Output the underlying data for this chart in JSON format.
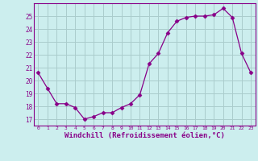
{
  "x": [
    0,
    1,
    2,
    3,
    4,
    5,
    6,
    7,
    8,
    9,
    10,
    11,
    12,
    13,
    14,
    15,
    16,
    17,
    18,
    19,
    20,
    21,
    22,
    23
  ],
  "y": [
    20.6,
    19.4,
    18.2,
    18.2,
    17.9,
    17.0,
    17.2,
    17.5,
    17.5,
    17.9,
    18.2,
    18.9,
    21.3,
    22.1,
    23.7,
    24.6,
    24.9,
    25.0,
    25.0,
    25.1,
    25.6,
    24.9,
    22.1,
    20.6
  ],
  "line_color": "#880088",
  "marker": "D",
  "marker_size": 2.5,
  "bg_color": "#cceeee",
  "grid_color": "#aacccc",
  "xlabel": "Windchill (Refroidissement éolien,°C)",
  "xlabel_fontsize": 6.5,
  "tick_label_color": "#880088",
  "xlim": [
    -0.5,
    23.5
  ],
  "ylim": [
    16.5,
    26.0
  ],
  "yticks": [
    17,
    18,
    19,
    20,
    21,
    22,
    23,
    24,
    25
  ],
  "xticks": [
    0,
    1,
    2,
    3,
    4,
    5,
    6,
    7,
    8,
    9,
    10,
    11,
    12,
    13,
    14,
    15,
    16,
    17,
    18,
    19,
    20,
    21,
    22,
    23
  ]
}
